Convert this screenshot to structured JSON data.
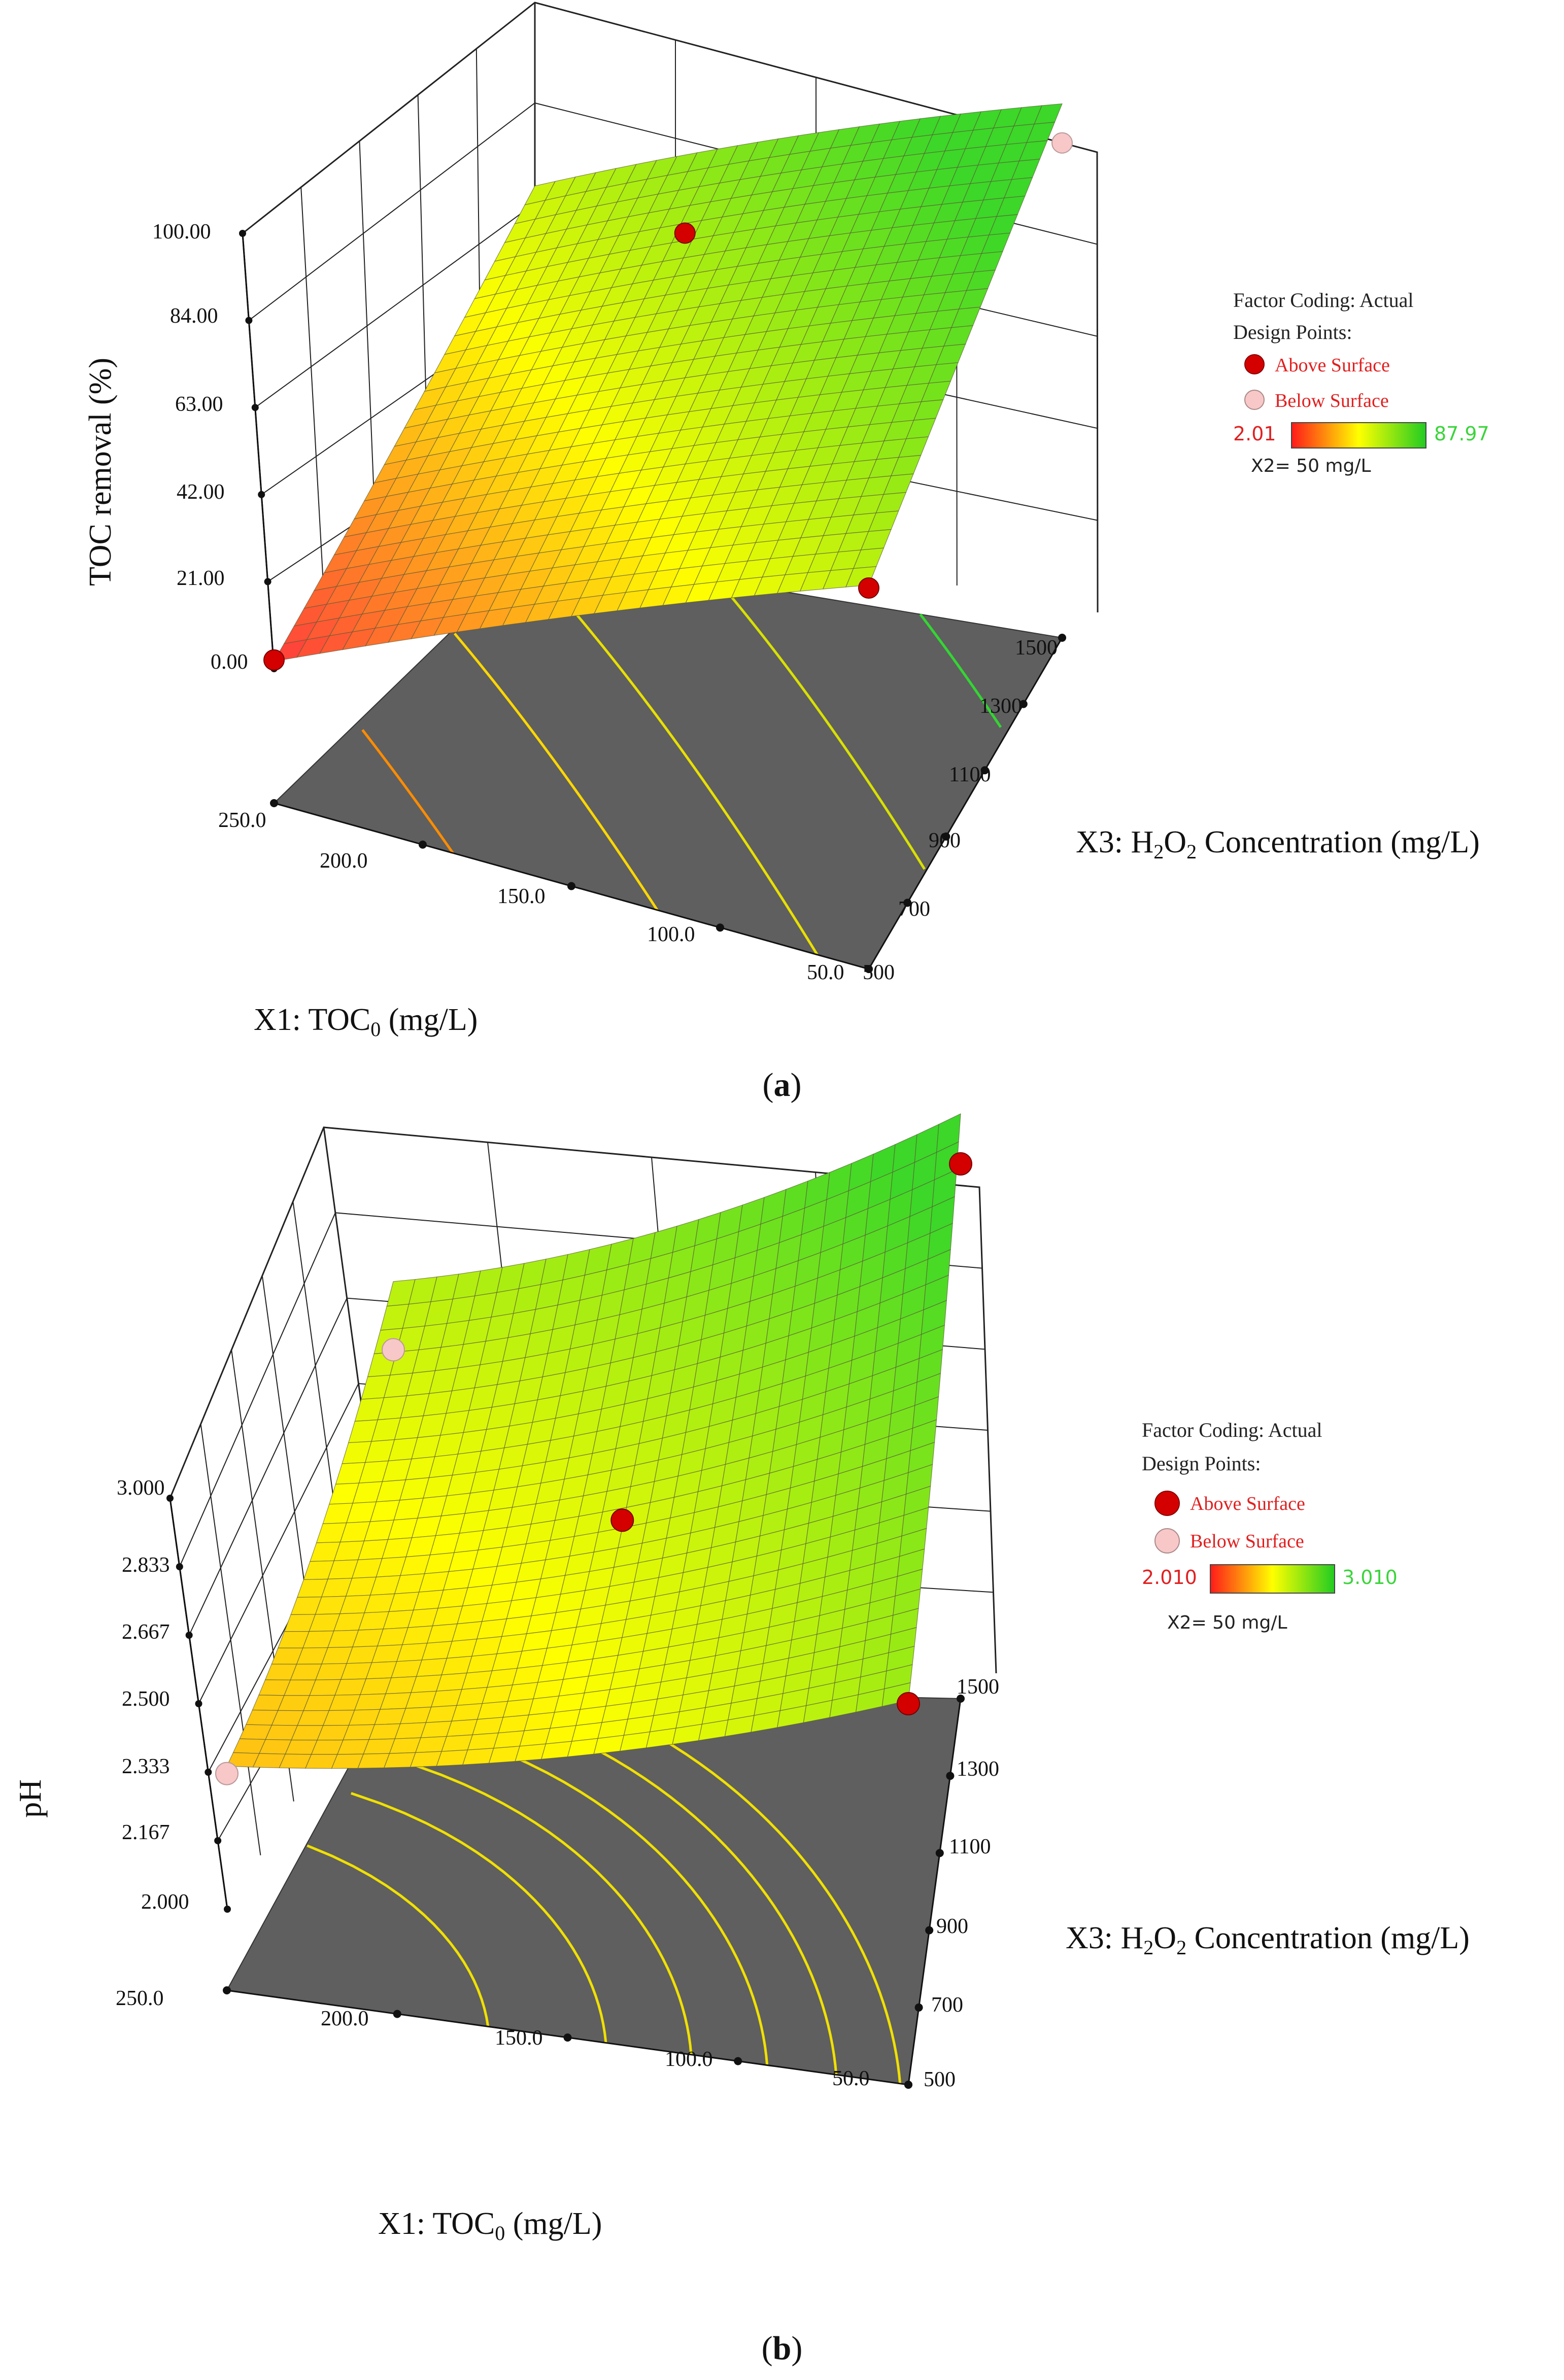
{
  "chart_data": [
    {
      "panel": "a",
      "type": "surface3d",
      "caption_letter": "a",
      "zlabel": "TOC removal (%)",
      "xlabel": "X1: TOC",
      "xlabel_sub": "0",
      "xlabel_unit": " (mg/L)",
      "ylabel_h2o2": {
        "pre": "X3: H",
        "s1": "2",
        "mid": "O",
        "s2": "2",
        "post": " Concentration (mg/L)"
      },
      "x_ticks": [
        "250.0",
        "200.0",
        "150.0",
        "100.0",
        "50.0"
      ],
      "x_range": [
        250,
        50
      ],
      "y_ticks": [
        "500",
        "700",
        "900",
        "1100",
        "1300",
        "1500"
      ],
      "y_range": [
        500,
        1500
      ],
      "z_ticks": [
        "0.00",
        "21.00",
        "42.00",
        "63.00",
        "84.00",
        "100.00"
      ],
      "z_range": [
        0,
        100
      ],
      "corner_values": {
        "x250_y500": 2,
        "x50_y500": 60,
        "x250_y1500": 58,
        "x50_y1500": 100
      },
      "surface_curvature": 4,
      "color_range": [
        2.01,
        87.97
      ],
      "design_points": [
        {
          "x": 250,
          "y": 500,
          "z": 2,
          "status": "above"
        },
        {
          "x": 50,
          "y": 500,
          "z": 59,
          "status": "above"
        },
        {
          "x": 150,
          "y": 1000,
          "z": 88,
          "status": "above"
        },
        {
          "x": 50,
          "y": 1500,
          "z": 90,
          "status": "below"
        }
      ],
      "contours": [
        {
          "level": 20,
          "color": "#ff8c00"
        },
        {
          "level": 40,
          "color": "#ffd700"
        },
        {
          "level": 55,
          "color": "#e8e000"
        },
        {
          "level": 72,
          "color": "#d8e000"
        },
        {
          "level": 88,
          "color": "#33d633"
        }
      ],
      "legend": {
        "coding": "Factor Coding: Actual",
        "design_points": "Design Points:",
        "above": "Above Surface",
        "below": "Below Surface",
        "min_label": "2.01",
        "max_label": "87.97",
        "note": "X2= 50 mg/L"
      }
    },
    {
      "panel": "b",
      "type": "surface3d",
      "caption_letter": "b",
      "zlabel": "pH",
      "xlabel": "X1: TOC",
      "xlabel_sub": "0",
      "xlabel_unit": " (mg/L)",
      "ylabel_h2o2": {
        "pre": "X3: H",
        "s1": "2",
        "mid": "O",
        "s2": "2",
        "post": " Concentration (mg/L)"
      },
      "x_ticks": [
        "250.0",
        "200.0",
        "150.0",
        "100.0",
        "50.0"
      ],
      "x_range": [
        250,
        50
      ],
      "y_ticks": [
        "500",
        "700",
        "900",
        "1100",
        "1300",
        "1500"
      ],
      "y_range": [
        500,
        1500
      ],
      "z_ticks": [
        "2.000",
        "2.167",
        "2.333",
        "2.500",
        "2.667",
        "2.833",
        "3.000"
      ],
      "z_range": [
        2.0,
        3.0
      ],
      "corner_values": {
        "x250_y500": 2.33,
        "x50_y500": 2.75,
        "x250_y1500": 2.6,
        "x50_y1500": 3.01
      },
      "surface_curvature": 0.25,
      "color_range": [
        2.01,
        3.01
      ],
      "design_points": [
        {
          "x": 250,
          "y": 500,
          "z": 2.33,
          "status": "below"
        },
        {
          "x": 50,
          "y": 500,
          "z": 2.76,
          "status": "above"
        },
        {
          "x": 150,
          "y": 1000,
          "z": 2.62,
          "status": "above"
        },
        {
          "x": 50,
          "y": 1500,
          "z": 3.0,
          "status": "above"
        },
        {
          "x": 250,
          "y": 1500,
          "z": 2.56,
          "status": "below"
        }
      ],
      "contours": [
        {
          "level": 2.45,
          "color": "#f0e000"
        },
        {
          "level": 2.52,
          "color": "#f0e000"
        },
        {
          "level": 2.58,
          "color": "#f0e000"
        },
        {
          "level": 2.64,
          "color": "#f0e000"
        },
        {
          "level": 2.7,
          "color": "#f0e000"
        },
        {
          "level": 2.76,
          "color": "#f0e000"
        }
      ],
      "legend": {
        "coding": "Factor Coding: Actual",
        "design_points": "Design Points:",
        "above": "Above Surface",
        "below": "Below Surface",
        "min_label": "2.010",
        "max_label": "3.010",
        "note": "X2= 50 mg/L"
      }
    }
  ],
  "colors": {
    "floor": "#5f5f5f",
    "grid": "#222222",
    "mesh": "#5a5a3a",
    "point_above": "#d40000",
    "point_below": "#f8c8c8"
  }
}
